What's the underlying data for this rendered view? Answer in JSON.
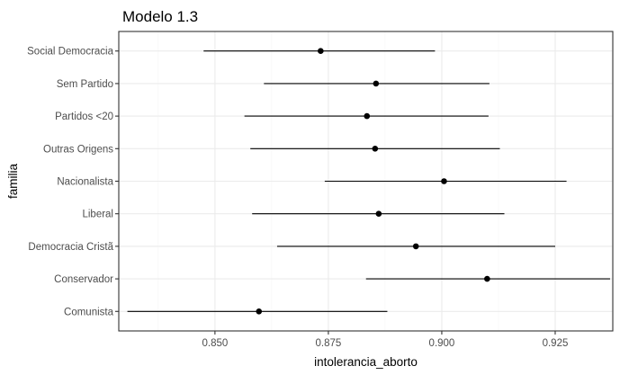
{
  "chart_data": {
    "type": "pointrange",
    "title": "Modelo 1.3",
    "xlabel": "intolerancia_aborto",
    "ylabel": "familia",
    "xlim": [
      0.8288,
      0.9377
    ],
    "xticks": [
      0.85,
      0.875,
      0.9,
      0.925
    ],
    "xtick_labels": [
      "0.850",
      "0.875",
      "0.900",
      "0.925"
    ],
    "grid": true,
    "categories": [
      "Social Democracia",
      "Sem Partido",
      "Partidos <20",
      "Outras Origens",
      "Nacionalista",
      "Liberal",
      "Democracia Cristã",
      "Conservador",
      "Comunista"
    ],
    "points": [
      {
        "label": "Social Democracia",
        "estimate": 0.8733,
        "lower": 0.8475,
        "upper": 0.8985
      },
      {
        "label": "Sem Partido",
        "estimate": 0.8855,
        "lower": 0.8608,
        "upper": 0.9105
      },
      {
        "label": "Partidos <20",
        "estimate": 0.8835,
        "lower": 0.8565,
        "upper": 0.9103
      },
      {
        "label": "Outras Origens",
        "estimate": 0.8853,
        "lower": 0.8578,
        "upper": 0.9128
      },
      {
        "label": "Nacionalista",
        "estimate": 0.9005,
        "lower": 0.8742,
        "upper": 0.9275
      },
      {
        "label": "Liberal",
        "estimate": 0.8861,
        "lower": 0.8582,
        "upper": 0.9138
      },
      {
        "label": "Democracia Cristã",
        "estimate": 0.8943,
        "lower": 0.8637,
        "upper": 0.925
      },
      {
        "label": "Conservador",
        "estimate": 0.91,
        "lower": 0.8833,
        "upper": 0.9371
      },
      {
        "label": "Comunista",
        "estimate": 0.8597,
        "lower": 0.8307,
        "upper": 0.888
      }
    ]
  }
}
